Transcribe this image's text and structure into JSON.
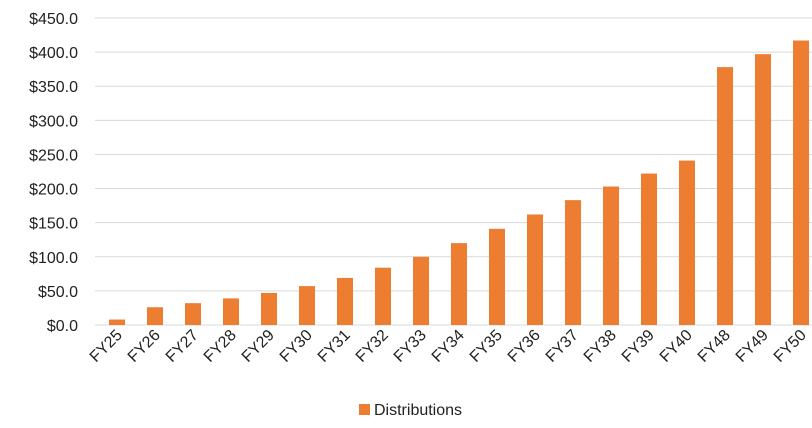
{
  "chart_data": {
    "type": "bar",
    "categories": [
      "FY25",
      "FY26",
      "FY27",
      "FY28",
      "FY29",
      "FY30",
      "FY31",
      "FY32",
      "FY33",
      "FY34",
      "FY35",
      "FY36",
      "FY37",
      "FY38",
      "FY39",
      "FY40",
      "FY48",
      "FY49",
      "FY50"
    ],
    "series": [
      {
        "name": "Distributions",
        "color": "#ED7D31",
        "values": [
          8,
          26,
          32,
          39,
          47,
          57,
          69,
          84,
          100,
          120,
          141,
          162,
          183,
          203,
          222,
          241,
          378,
          397,
          417
        ]
      }
    ],
    "yticks": [
      "$0.0",
      "$50.0",
      "$100.0",
      "$150.0",
      "$200.0",
      "$250.0",
      "$300.0",
      "$350.0",
      "$400.0",
      "$450.0"
    ],
    "ylim": [
      0,
      450
    ],
    "grid": true,
    "legend_position": "bottom"
  }
}
